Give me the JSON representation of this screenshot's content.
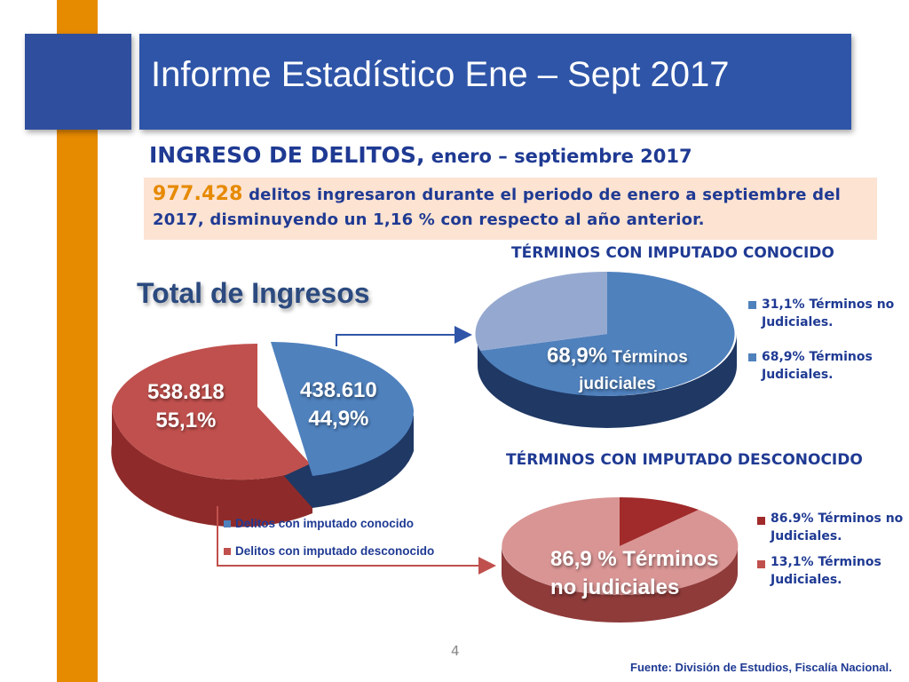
{
  "header": {
    "title": "Informe Estadístico Ene – Sept 2017"
  },
  "heading": {
    "main": "INGRESO DE DELITOS,",
    "sub": " enero – septiembre 2017"
  },
  "summary": {
    "number": "977.428",
    "line1_rest": " delitos ingresaron durante el periodo de enero a septiembre del",
    "line2": "2017, disminuyendo un 1,16 % con respecto al año anterior."
  },
  "colors": {
    "orange": "#E68A00",
    "blue": "#4F81BD",
    "blue_light": "#95A9D0",
    "red": "#C0504D",
    "red_light": "#D99594",
    "dark_red": "#A12A2A",
    "title_band": "#2F55A8"
  },
  "chart_data": [
    {
      "type": "pie",
      "title": "Total de Ingresos",
      "slices": [
        {
          "name": "Delitos con imputado conocido",
          "value": 438610,
          "percent": 44.9,
          "label_value": "438.610",
          "label_percent": "44,9%",
          "color": "#4F81BD"
        },
        {
          "name": "Delitos con imputado desconocido",
          "value": 538818,
          "percent": 55.1,
          "label_value": "538.818",
          "label_percent": "55,1%",
          "color": "#C0504D"
        }
      ],
      "legend": [
        "Delitos con imputado conocido",
        "Delitos con imputado desconocido"
      ]
    },
    {
      "type": "pie",
      "title": "TÉRMINOS CON IMPUTADO CONOCIDO",
      "slices": [
        {
          "name": "Términos no Judiciales",
          "percent": 31.1,
          "legend": "31,1% Términos no Judiciales.",
          "color": "#95A9D0"
        },
        {
          "name": "Términos Judiciales",
          "percent": 68.9,
          "legend": "68,9% Términos Judiciales.",
          "color": "#4F81BD"
        }
      ],
      "label_big": "68,9%",
      "label_rest_1": " Términos",
      "label_rest_2": "judiciales"
    },
    {
      "type": "pie",
      "title": "TÉRMINOS CON IMPUTADO DESCONOCIDO",
      "slices": [
        {
          "name": "Términos no Judiciales",
          "percent": 86.9,
          "legend": "86.9% Términos no Judiciales.",
          "color": "#D99594"
        },
        {
          "name": "Términos Judiciales",
          "percent": 13.1,
          "legend": "13,1% Términos Judiciales.",
          "color": "#A12A2A"
        }
      ],
      "label_line1": "86,9 % Términos",
      "label_line2": "no judiciales"
    }
  ],
  "footer": {
    "page": "4",
    "source": "Fuente: División de Estudios, Fiscalía Nacional."
  }
}
